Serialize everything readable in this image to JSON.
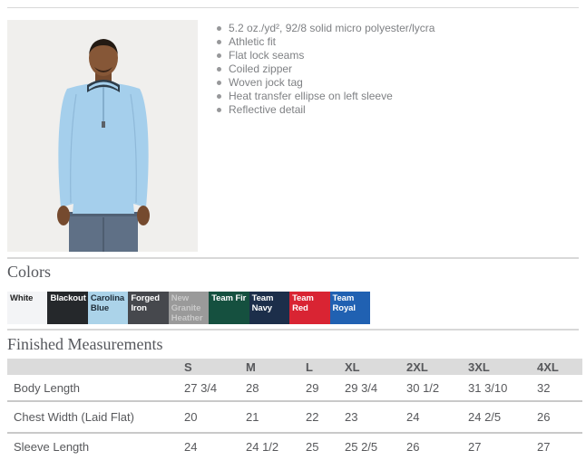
{
  "product": {
    "features": [
      "5.2 oz./yd², 92/8 solid micro polyester/lycra",
      "Athletic fit",
      "Flat lock seams",
      "Coiled zipper",
      "Woven jock tag",
      "Heat transfer ellipse on left sleeve",
      "Reflective detail"
    ]
  },
  "illustration": {
    "photo_background": "#f0efed",
    "shirt_color": "#a5cfec",
    "skin_color": "#865737",
    "hair_color": "#231a13",
    "collar_color": "#2e3d4a",
    "jeans_color": "#5f7086"
  },
  "colors_section": {
    "heading": "Colors",
    "swatches": [
      {
        "name": "White",
        "bg": "#f3f4f6",
        "text": "#232323"
      },
      {
        "name": "Blackout",
        "bg": "#25282b",
        "text": "#ffffff"
      },
      {
        "name": "Carolina Blue",
        "bg": "#abd3e9",
        "text": "#1f2d39"
      },
      {
        "name": "Forged Iron",
        "bg": "#46484d",
        "text": "#ffffff"
      },
      {
        "name": "New Granite Heather",
        "bg": "#9a9a9a",
        "text": "#c9c9c9"
      },
      {
        "name": "Team Fir",
        "bg": "#15503f",
        "text": "#ffffff"
      },
      {
        "name": "Team Navy",
        "bg": "#1c2e4a",
        "text": "#ffffff"
      },
      {
        "name": "Team Red",
        "bg": "#d92433",
        "text": "#ffffff"
      },
      {
        "name": "Team Royal",
        "bg": "#2061b2",
        "text": "#ffffff"
      }
    ]
  },
  "measurements_section": {
    "heading": "Finished Measurements",
    "size_columns": [
      "S",
      "M",
      "L",
      "XL",
      "2XL",
      "3XL",
      "4XL"
    ],
    "rows": [
      {
        "label": "Body Length",
        "values": [
          "27 3/4",
          "28",
          "29",
          "29 3/4",
          "30 1/2",
          "31 3/10",
          "32"
        ]
      },
      {
        "label": "Chest Width (Laid Flat)",
        "values": [
          "20",
          "21",
          "22",
          "23",
          "24",
          "24 2/5",
          "26"
        ]
      },
      {
        "label": "Sleeve Length",
        "values": [
          "24",
          "24 1/2",
          "25",
          "25 2/5",
          "26",
          "27",
          "27"
        ]
      }
    ]
  }
}
